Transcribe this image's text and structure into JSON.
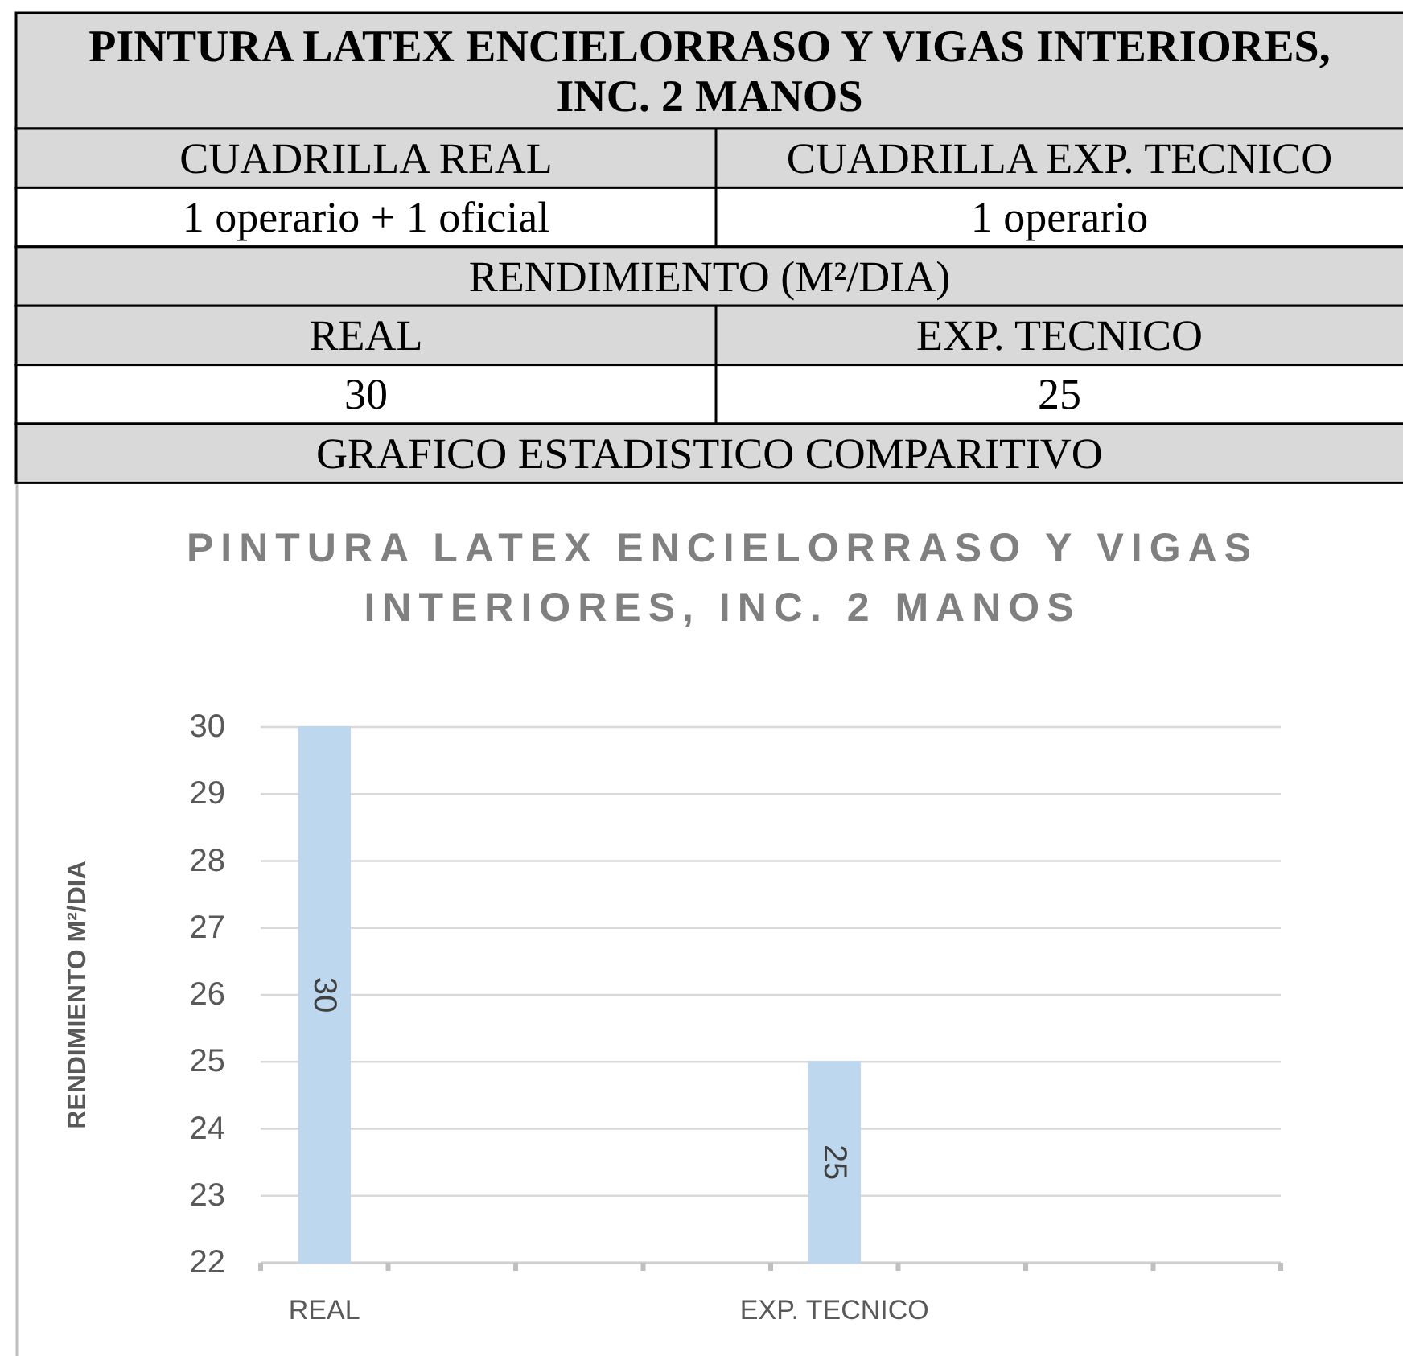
{
  "chart_data": [
    {
      "type": "other",
      "title": "PINTURA LATEX ENCIELORRASO Y VIGAS INTERIORES, INC. 2 MANOS",
      "annotations": [
        "CUADRILLA REAL",
        "CUADRILLA EXP. TECNICO",
        "1 operario + 1 oficial",
        "1 operario",
        "RENDIMIENTO (M²/DIA)",
        "REAL",
        "EXP. TECNICO",
        "30",
        "25",
        "GRAFICO ESTADISTICO COMPARITIVO"
      ]
    },
    {
      "type": "bar",
      "title": "PINTURA LATEX ENCIELORRASO Y VIGAS INTERIORES, INC. 2 MANOS",
      "ylabel": "RENDIMIENTO M²/DIA",
      "categories": [
        "REAL",
        null,
        null,
        null,
        "EXP. TECNICO",
        null,
        null,
        null
      ],
      "values": [
        30,
        null,
        null,
        null,
        25,
        null,
        null,
        null
      ],
      "color": "#bdd7ee",
      "ylim": [
        22,
        30
      ],
      "yticks": [
        22,
        23,
        24,
        25,
        26,
        27,
        28,
        29,
        30
      ],
      "grid": "y",
      "data_labels": true
    }
  ]
}
